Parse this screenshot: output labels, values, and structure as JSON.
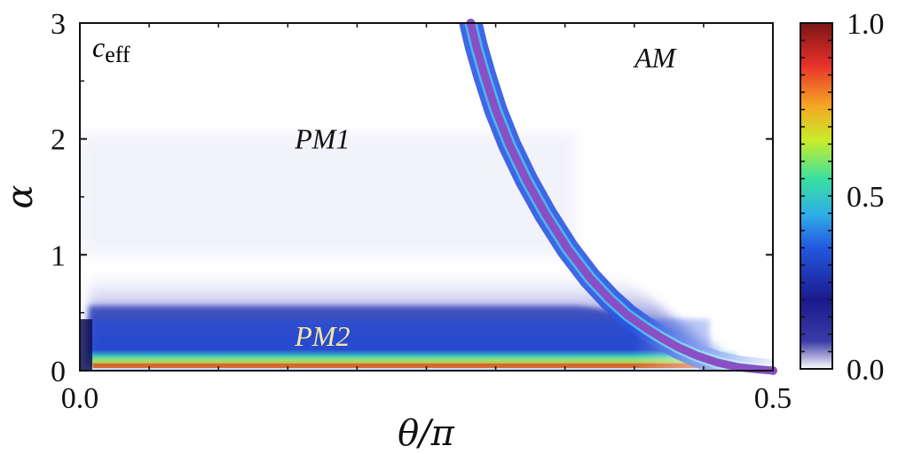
{
  "chart_data": {
    "type": "heatmap",
    "panel_label": "c_eff",
    "xlabel": "θ/π",
    "ylabel": "α",
    "xlim": [
      0,
      0.5
    ],
    "ylim": [
      0,
      3
    ],
    "x_ticks": [
      0.0,
      0.5
    ],
    "x_tick_labels": [
      "0.0",
      "0.5"
    ],
    "y_ticks": [
      0,
      1,
      2,
      3
    ],
    "y_tick_labels": [
      "0",
      "1",
      "2",
      "3"
    ],
    "colorbar": {
      "range": [
        0.0,
        1.0
      ],
      "tick_values": [
        0.0,
        0.5,
        1.0
      ],
      "tick_labels": [
        "0.0",
        "0.5",
        "1.0"
      ],
      "colormap": [
        "#ffffff",
        "#1a1a8c",
        "#2456e0",
        "#2fb0e6",
        "#39e0a0",
        "#c8ee2a",
        "#f5a623",
        "#e8302a",
        "#7a1515"
      ]
    },
    "regions": [
      {
        "label": "PM1",
        "x": 0.175,
        "y": 2.0,
        "color": "#111111"
      },
      {
        "label": "PM2",
        "x": 0.175,
        "y": 0.3,
        "color": "#f3e6a4"
      },
      {
        "label": "AM",
        "x": 0.415,
        "y": 2.7,
        "color": "#111111"
      }
    ],
    "series": [
      {
        "type": "line",
        "color": "#8a4fc4",
        "x": [
          0.282,
          0.286,
          0.292,
          0.3,
          0.31,
          0.322,
          0.336,
          0.352,
          0.368,
          0.382,
          0.395,
          0.408,
          0.42,
          0.432,
          0.445,
          0.46,
          0.475,
          0.488,
          0.5
        ],
        "y": [
          3.0,
          2.8,
          2.55,
          2.25,
          1.95,
          1.65,
          1.35,
          1.05,
          0.8,
          0.62,
          0.48,
          0.37,
          0.28,
          0.2,
          0.13,
          0.07,
          0.03,
          0.012,
          0.0
        ]
      }
    ],
    "color_bands": [
      {
        "y_range": [
          0.0,
          0.02
        ],
        "value": 0.75
      },
      {
        "y_range": [
          0.02,
          0.05
        ],
        "value": 0.45
      },
      {
        "y_range": [
          0.05,
          0.25
        ],
        "value": 0.22
      },
      {
        "y_range": [
          0.25,
          0.45
        ],
        "value": 0.12
      },
      {
        "y_range": [
          0.45,
          1.2
        ],
        "value": 0.05
      }
    ]
  }
}
